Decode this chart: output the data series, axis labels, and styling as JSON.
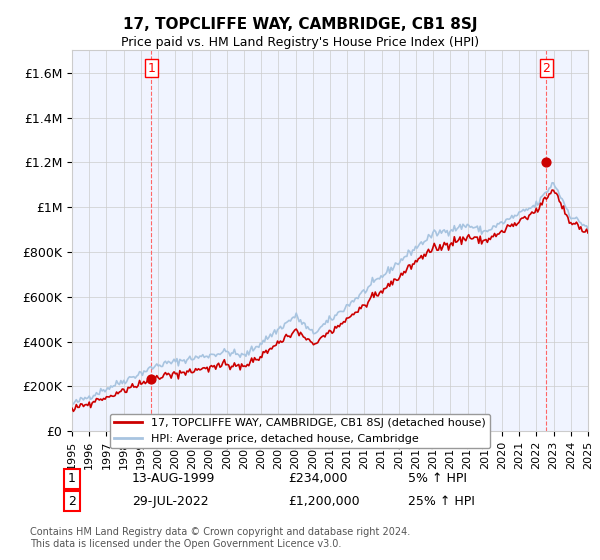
{
  "title": "17, TOPCLIFFE WAY, CAMBRIDGE, CB1 8SJ",
  "subtitle": "Price paid vs. HM Land Registry's House Price Index (HPI)",
  "xlabel": "",
  "ylabel": "",
  "yticks": [
    0,
    200000,
    400000,
    600000,
    800000,
    1000000,
    1200000,
    1400000,
    1600000
  ],
  "ytick_labels": [
    "£0",
    "£200K",
    "£400K",
    "£600K",
    "£800K",
    "£1M",
    "£1.2M",
    "£1.4M",
    "£1.6M"
  ],
  "ylim": [
    0,
    1700000
  ],
  "year_start": 1995,
  "year_end": 2025,
  "sale1_date": "13-AUG-1999",
  "sale1_price": 234000,
  "sale1_hpi_pct": "5% ↑ HPI",
  "sale2_date": "29-JUL-2022",
  "sale2_price": 1200000,
  "sale2_hpi_pct": "25% ↑ HPI",
  "sale1_year": 1999.619,
  "sale2_year": 2022.571,
  "hpi_line_color": "#a8c4e0",
  "price_line_color": "#cc0000",
  "dot_color": "#cc0000",
  "vline_color": "#ff6666",
  "bg_color": "#f0f4ff",
  "grid_color": "#cccccc",
  "legend_label1": "17, TOPCLIFFE WAY, CAMBRIDGE, CB1 8SJ (detached house)",
  "legend_label2": "HPI: Average price, detached house, Cambridge",
  "footnote": "Contains HM Land Registry data © Crown copyright and database right 2024.\nThis data is licensed under the Open Government Licence v3.0.",
  "sale1_label": "1",
  "sale2_label": "2"
}
